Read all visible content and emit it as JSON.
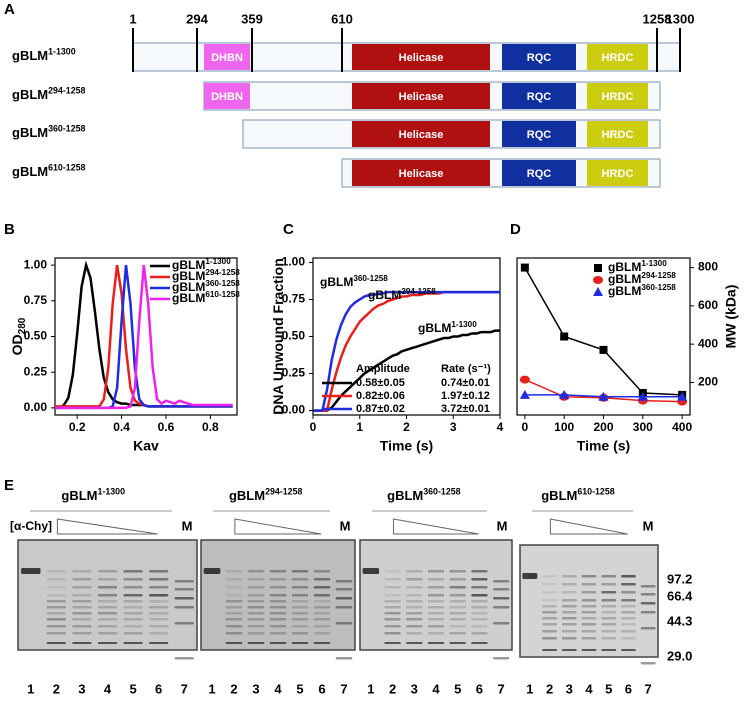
{
  "panel_labels": [
    "A",
    "B",
    "C",
    "D",
    "E"
  ],
  "domain_map": {
    "scale": [
      1,
      294,
      359,
      610,
      1258,
      1300
    ],
    "constructs": [
      {
        "name": "gBLM",
        "sup": "1-1300",
        "domains": [
          "DHBN",
          "Helicase",
          "RQC",
          "HRDC"
        ]
      },
      {
        "name": "gBLM",
        "sup": "294-1258",
        "domains": [
          "DHBN",
          "Helicase",
          "RQC",
          "HRDC"
        ]
      },
      {
        "name": "gBLM",
        "sup": "360-1258",
        "domains": [
          "Helicase",
          "RQC",
          "HRDC"
        ]
      },
      {
        "name": "gBLM",
        "sup": "610-1258",
        "domains": [
          "Helicase",
          "RQC",
          "HRDC"
        ]
      }
    ]
  },
  "chart_data": [
    {
      "type": "line",
      "xlabel": "Kav",
      "ylabel": "OD",
      "ylabel_sub": "280",
      "legend": "upper right",
      "x": [
        0.1,
        0.12,
        0.14,
        0.16,
        0.18,
        0.2,
        0.22,
        0.24,
        0.26,
        0.28,
        0.3,
        0.32,
        0.34,
        0.36,
        0.38,
        0.4,
        0.42,
        0.44,
        0.46,
        0.48,
        0.5,
        0.52,
        0.54,
        0.56,
        0.58,
        0.6,
        0.62,
        0.64,
        0.66,
        0.68,
        0.7,
        0.72,
        0.74,
        0.76,
        0.78,
        0.8,
        0.82,
        0.84,
        0.86,
        0.88,
        0.9
      ],
      "xlim": [
        0.1,
        0.92
      ],
      "xticks": [
        0.2,
        0.4,
        0.6,
        0.8
      ],
      "ylim": [
        -0.05,
        1.05
      ],
      "yticks": [
        {
          "value": 0,
          "label": "0.00"
        },
        0.25,
        {
          "value": 0.5,
          "label": "0.50"
        },
        0.75,
        {
          "value": 1,
          "label": "1.00"
        }
      ],
      "series": [
        {
          "name": "gBLM",
          "sup": "1-1300",
          "color": "#000000",
          "values": [
            0,
            0,
            0.02,
            0.07,
            0.23,
            0.52,
            0.85,
            1,
            0.91,
            0.67,
            0.41,
            0.21,
            0.11,
            0.06,
            0.04,
            0.03,
            0.03,
            0.02,
            0.02,
            0.02,
            0.02,
            0.01,
            0.01,
            0.01,
            0.01,
            0.01,
            0.01,
            0.01,
            0.01,
            0.01,
            0.01,
            0.01,
            0.01,
            0.01,
            0.01,
            0.01,
            0.01,
            0.01,
            0.01,
            0.01,
            0.01
          ]
        },
        {
          "name": "gBLM",
          "sup": "294-1258",
          "color": "#e8201c",
          "values": [
            0.01,
            0.01,
            0.01,
            0.01,
            0.01,
            0.01,
            0.01,
            0.01,
            0.01,
            0.01,
            0.01,
            0.06,
            0.28,
            0.73,
            1,
            0.8,
            0.41,
            0.14,
            0.05,
            0.03,
            0.02,
            0.01,
            0.01,
            0.01,
            0.01,
            0.01,
            0.01,
            0.01,
            0.01,
            0.01,
            0.01,
            0.01,
            0.01,
            0.01,
            0.01,
            0.01,
            0.01,
            0.01,
            0.01,
            0.01,
            0.01
          ]
        },
        {
          "name": "gBLM",
          "sup": "360-1258",
          "color": "#1f2de0",
          "values": [
            0,
            0,
            0,
            0,
            0,
            0,
            0,
            0,
            0,
            0,
            0,
            0,
            0,
            0.01,
            0.14,
            0.61,
            1,
            0.73,
            0.28,
            0.06,
            0.02,
            0.01,
            0.01,
            0.01,
            0.01,
            0.01,
            0.01,
            0.01,
            0.01,
            0.01,
            0.01,
            0.01,
            0.01,
            0.01,
            0.01,
            0.01,
            0.01,
            0.01,
            0.01,
            0.01,
            0.01
          ]
        },
        {
          "name": "gBLM",
          "sup": "610-1258",
          "color": "#ee22ee",
          "values": [
            0,
            0,
            0,
            0,
            0,
            0,
            0,
            0,
            0,
            0,
            0,
            0,
            0,
            0,
            0,
            0,
            0,
            0.01,
            0.14,
            0.61,
            1,
            0.73,
            0.28,
            0.06,
            0.03,
            0.05,
            0.04,
            0.03,
            0.05,
            0.04,
            0.03,
            0.02,
            0.02,
            0.02,
            0.02,
            0.02,
            0.02,
            0.02,
            0.02,
            0.02,
            0.02
          ]
        }
      ]
    },
    {
      "type": "line",
      "xlabel": "Time (s)",
      "ylabel": "DNA Unwound Fraction",
      "x": [
        0,
        0.1,
        0.2,
        0.3,
        0.4,
        0.5,
        0.6,
        0.7,
        0.8,
        0.9,
        1,
        1.1,
        1.2,
        1.3,
        1.4,
        1.5,
        1.6,
        1.7,
        1.8,
        1.9,
        2,
        2.1,
        2.2,
        2.3,
        2.4,
        2.5,
        2.6,
        2.7,
        2.8,
        2.9,
        3,
        3.1,
        3.2,
        3.3,
        3.4,
        3.5,
        3.6,
        3.7,
        3.8,
        3.9,
        4
      ],
      "xlim": [
        0,
        4
      ],
      "xticks": [
        0,
        1,
        2,
        3,
        4
      ],
      "ylim": [
        -0.03,
        1.03
      ],
      "yticks": [
        {
          "value": 0,
          "label": "0.00"
        },
        0.25,
        {
          "value": 0.5,
          "label": "0.50"
        },
        0.75,
        {
          "value": 1,
          "label": "1.00"
        }
      ],
      "series": [
        {
          "name": "gBLM",
          "sup": "1-1300",
          "color": "#000000",
          "values": [
            0,
            0,
            0,
            0,
            0.02,
            0.06,
            0.1,
            0.13,
            0.16,
            0.19,
            0.22,
            0.25,
            0.27,
            0.29,
            0.31,
            0.33,
            0.35,
            0.37,
            0.38,
            0.4,
            0.41,
            0.42,
            0.43,
            0.44,
            0.45,
            0.46,
            0.47,
            0.48,
            0.49,
            0.49,
            0.5,
            0.5,
            0.51,
            0.51,
            0.52,
            0.52,
            0.53,
            0.53,
            0.53,
            0.54,
            0.54
          ]
        },
        {
          "name": "gBLM",
          "sup": "294-1258",
          "color": "#e8201c",
          "values": [
            0,
            0,
            0,
            0,
            0.14,
            0.26,
            0.36,
            0.44,
            0.5,
            0.55,
            0.6,
            0.63,
            0.66,
            0.69,
            0.71,
            0.72,
            0.74,
            0.75,
            0.76,
            0.77,
            0.77,
            0.78,
            0.78,
            0.78,
            0.79,
            0.79,
            0.79,
            0.79,
            0.8,
            0.8,
            0.8,
            0.8,
            0.8,
            0.8,
            0.8,
            0.8,
            0.8,
            0.8,
            0.8,
            0.8,
            0.8
          ]
        },
        {
          "name": "gBLM",
          "sup": "360-1258",
          "color": "#1f2de0",
          "values": [
            0,
            0,
            0,
            0.14,
            0.34,
            0.48,
            0.58,
            0.65,
            0.7,
            0.73,
            0.75,
            0.77,
            0.78,
            0.78,
            0.79,
            0.79,
            0.8,
            0.8,
            0.8,
            0.8,
            0.8,
            0.8,
            0.8,
            0.8,
            0.8,
            0.8,
            0.8,
            0.8,
            0.8,
            0.8,
            0.8,
            0.8,
            0.8,
            0.8,
            0.8,
            0.8,
            0.8,
            0.8,
            0.8,
            0.8,
            0.8
          ]
        }
      ],
      "inset_table": {
        "header": [
          "Amplitude",
          "Rate (s⁻¹)"
        ],
        "rows": [
          [
            "0.58±0.05",
            "0.74±0.01"
          ],
          [
            "0.82±0.06",
            "1.97±0.12"
          ],
          [
            "0.87±0.02",
            "3.72±0.01"
          ]
        ]
      }
    },
    {
      "type": "line",
      "xlabel": "Time (s)",
      "y2label": "MW (kDa)",
      "legend": "upper right",
      "markers": true,
      "x": [
        0,
        100,
        200,
        300,
        400
      ],
      "xlim": [
        -20,
        420
      ],
      "xticks": [
        0,
        100,
        200,
        300,
        400
      ],
      "y2lim": [
        30,
        850
      ],
      "y2ticks": [
        200,
        400,
        600,
        800
      ],
      "series": [
        {
          "name": "gBLM",
          "sup": "1-1300",
          "color": "#000000",
          "marker": "square",
          "axis": "y2",
          "values": [
            800,
            440,
            370,
            145,
            135
          ]
        },
        {
          "name": "gBLM",
          "sup": "294-1258",
          "color": "#e8201c",
          "marker": "circle",
          "axis": "y2",
          "values": [
            215,
            125,
            120,
            105,
            100
          ]
        },
        {
          "name": "gBLM",
          "sup": "360-1258",
          "color": "#1f2de0",
          "marker": "triangle",
          "axis": "y2",
          "values": [
            135,
            135,
            125,
            125,
            125
          ]
        }
      ]
    }
  ],
  "gels": {
    "concentration_label": "[α-Chy]",
    "mw_markers": [
      "97.2",
      "66.4",
      "44.3",
      "29.0"
    ],
    "panels": [
      {
        "name": "gBLM",
        "sup": "1-1300",
        "marker_lane": "M",
        "lanes": [
          "1",
          "2",
          "3",
          "4",
          "5",
          "6",
          "7"
        ]
      },
      {
        "name": "gBLM",
        "sup": "294-1258",
        "marker_lane": "M",
        "lanes": [
          "1",
          "2",
          "3",
          "4",
          "5",
          "6",
          "7"
        ]
      },
      {
        "name": "gBLM",
        "sup": "360-1258",
        "marker_lane": "M",
        "lanes": [
          "1",
          "2",
          "3",
          "4",
          "5",
          "6",
          "7"
        ]
      },
      {
        "name": "gBLM",
        "sup": "610-1258",
        "marker_lane": "M",
        "lanes": [
          "1",
          "2",
          "3",
          "4",
          "5",
          "6",
          "7"
        ]
      }
    ]
  }
}
